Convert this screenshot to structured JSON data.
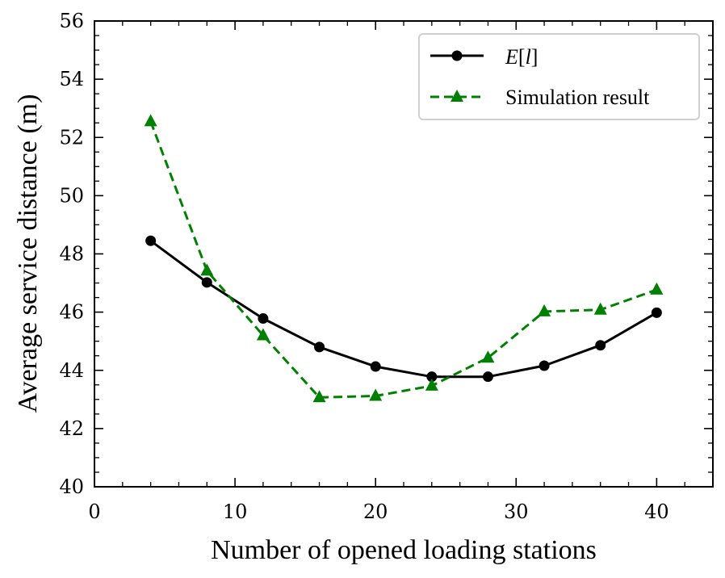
{
  "chart_data": {
    "type": "line",
    "xlabel": "Number of opened loading stations",
    "ylabel": "Average service distance (m)",
    "xlim": [
      0,
      44
    ],
    "ylim": [
      40,
      56
    ],
    "xticks": [
      0,
      10,
      20,
      30,
      40
    ],
    "yticks": [
      40,
      42,
      44,
      46,
      48,
      50,
      52,
      54,
      56
    ],
    "x": [
      4,
      8,
      12,
      16,
      20,
      24,
      28,
      32,
      36,
      40
    ],
    "legend_position": "top-right",
    "grid": false,
    "series": [
      {
        "name": "E[l]",
        "style": "solid",
        "marker": "circle",
        "color": "#000000",
        "values": [
          48.45,
          47.02,
          45.78,
          44.8,
          44.13,
          43.78,
          43.78,
          44.16,
          44.86,
          45.98
        ]
      },
      {
        "name": "Simulation result",
        "style": "dashed",
        "marker": "triangle",
        "color": "#008000",
        "values": [
          52.55,
          47.42,
          45.2,
          43.07,
          43.12,
          43.47,
          44.43,
          46.02,
          46.08,
          46.77
        ]
      }
    ]
  }
}
